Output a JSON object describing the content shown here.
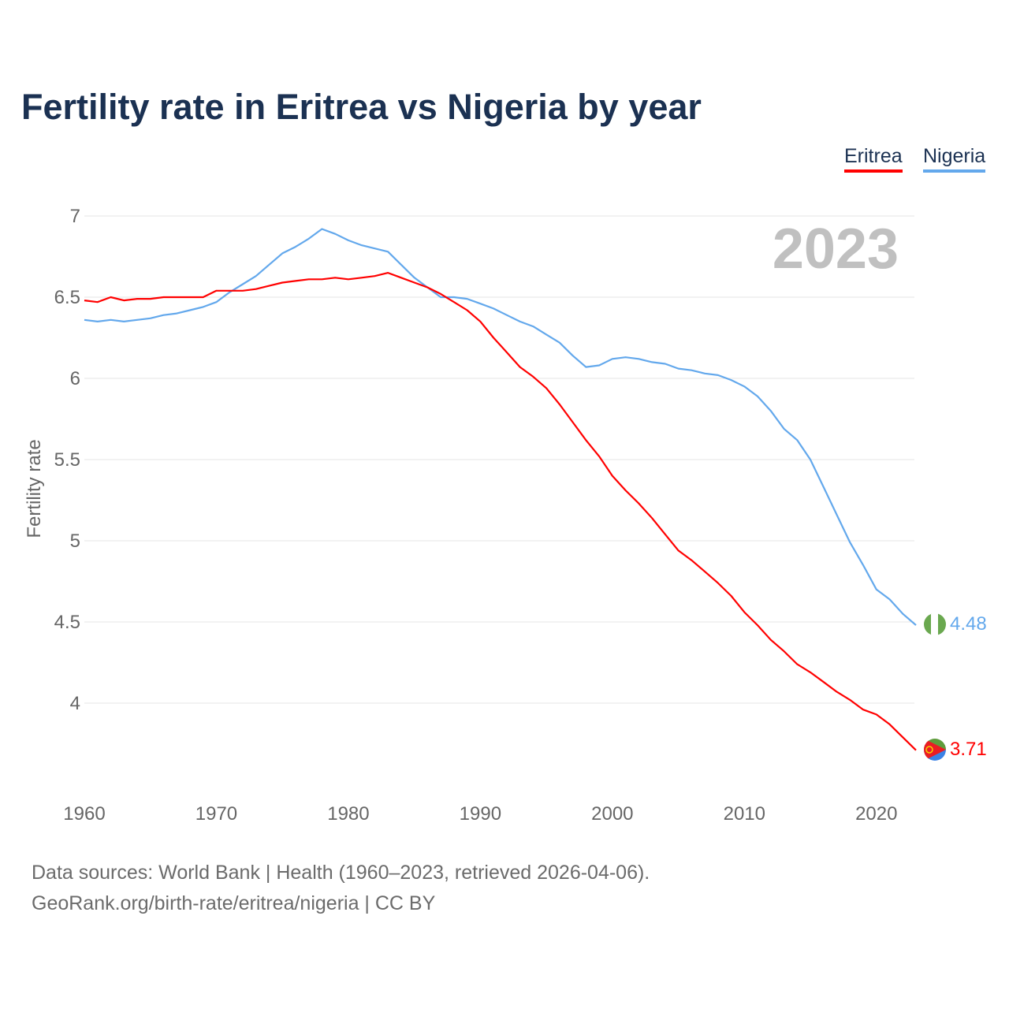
{
  "chart_data": {
    "type": "line",
    "title": "Fertility rate in Eritrea vs Nigeria by year",
    "xlabel": "",
    "ylabel": "Fertility rate",
    "xlim": [
      1960,
      2023
    ],
    "ylim": [
      3.6,
      7
    ],
    "yticks": [
      "7",
      "6.5",
      "6",
      "5.5",
      "5",
      "4.5",
      "4"
    ],
    "xticks": [
      "1960",
      "1970",
      "1980",
      "1990",
      "2000",
      "2010",
      "2020"
    ],
    "grid": true,
    "legend_position": "top-right",
    "year_label": "2023",
    "x": [
      1960,
      1961,
      1962,
      1963,
      1964,
      1965,
      1966,
      1967,
      1968,
      1969,
      1970,
      1971,
      1972,
      1973,
      1974,
      1975,
      1976,
      1977,
      1978,
      1979,
      1980,
      1981,
      1982,
      1983,
      1984,
      1985,
      1986,
      1987,
      1988,
      1989,
      1990,
      1991,
      1992,
      1993,
      1994,
      1995,
      1996,
      1997,
      1998,
      1999,
      2000,
      2001,
      2002,
      2003,
      2004,
      2005,
      2006,
      2007,
      2008,
      2009,
      2010,
      2011,
      2012,
      2013,
      2014,
      2015,
      2016,
      2017,
      2018,
      2019,
      2020,
      2021,
      2022,
      2023
    ],
    "series": [
      {
        "name": "Eritrea",
        "color": "#ff0000",
        "end_label": "3.71",
        "values": [
          6.48,
          6.47,
          6.5,
          6.48,
          6.49,
          6.49,
          6.5,
          6.5,
          6.5,
          6.5,
          6.54,
          6.54,
          6.54,
          6.55,
          6.57,
          6.59,
          6.6,
          6.61,
          6.61,
          6.62,
          6.61,
          6.62,
          6.63,
          6.65,
          6.62,
          6.59,
          6.56,
          6.52,
          6.47,
          6.42,
          6.35,
          6.25,
          6.16,
          6.07,
          6.01,
          5.94,
          5.84,
          5.73,
          5.62,
          5.52,
          5.4,
          5.31,
          5.23,
          5.14,
          5.04,
          4.94,
          4.88,
          4.81,
          4.74,
          4.66,
          4.56,
          4.48,
          4.39,
          4.32,
          4.24,
          4.19,
          4.13,
          4.07,
          4.02,
          3.96,
          3.93,
          3.87,
          3.79,
          3.71
        ]
      },
      {
        "name": "Nigeria",
        "color": "#63a8ec",
        "end_label": "4.48",
        "values": [
          6.36,
          6.35,
          6.36,
          6.35,
          6.36,
          6.37,
          6.39,
          6.4,
          6.42,
          6.44,
          6.47,
          6.53,
          6.58,
          6.63,
          6.7,
          6.77,
          6.81,
          6.86,
          6.92,
          6.89,
          6.85,
          6.82,
          6.8,
          6.78,
          6.7,
          6.62,
          6.56,
          6.5,
          6.5,
          6.49,
          6.46,
          6.43,
          6.39,
          6.35,
          6.32,
          6.27,
          6.22,
          6.14,
          6.07,
          6.08,
          6.12,
          6.13,
          6.12,
          6.1,
          6.09,
          6.06,
          6.05,
          6.03,
          6.02,
          5.99,
          5.95,
          5.89,
          5.8,
          5.69,
          5.62,
          5.5,
          5.33,
          5.16,
          4.99,
          4.85,
          4.7,
          4.64,
          4.55,
          4.48
        ]
      }
    ]
  },
  "legend": {
    "eritrea": "Eritrea",
    "nigeria": "Nigeria"
  },
  "source": {
    "line1": "Data sources: World Bank | Health (1960–2023, retrieved 2026-04-06).",
    "line2": "GeoRank.org/birth-rate/eritrea/nigeria | CC BY"
  }
}
